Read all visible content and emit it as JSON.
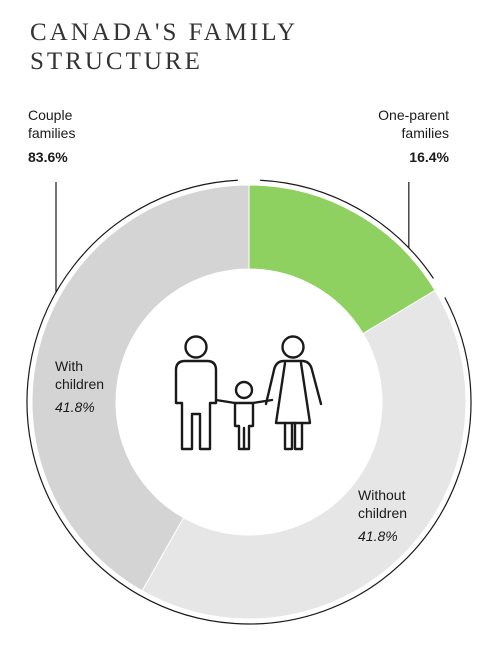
{
  "title_line1": "CANADA'S FAMILY",
  "title_line2": "STRUCTURE",
  "outer": {
    "couple": {
      "label_line1": "Couple",
      "label_line2": "families",
      "value_text": "83.6%",
      "value": 83.6
    },
    "one_parent": {
      "label_line1": "One-parent",
      "label_line2": "families",
      "value_text": "16.4%",
      "value": 16.4
    }
  },
  "segments": {
    "with_children": {
      "label_line1": "With",
      "label_line2": "children",
      "value_text": "41.8%"
    },
    "without_children": {
      "label_line1": "Without",
      "label_line2": "children",
      "value_text": "41.8%"
    }
  },
  "center_icon": "family-icon",
  "colors": {
    "one_parent": "#8fd160",
    "with_children": "#d4d4d4",
    "without_children": "#e6e6e6",
    "outline": "#1a1a1a"
  },
  "chart_data": {
    "type": "pie",
    "categories": [
      "One-parent families",
      "Couple families: Without children",
      "Couple families: With children"
    ],
    "values": [
      16.4,
      41.8,
      41.8
    ],
    "groups": [
      {
        "name": "Couple families",
        "value": 83.6,
        "parts": [
          {
            "name": "With children",
            "value": 41.8
          },
          {
            "name": "Without children",
            "value": 41.8
          }
        ]
      },
      {
        "name": "One-parent families",
        "value": 16.4
      }
    ],
    "title": "CANADA'S FAMILY STRUCTURE"
  }
}
